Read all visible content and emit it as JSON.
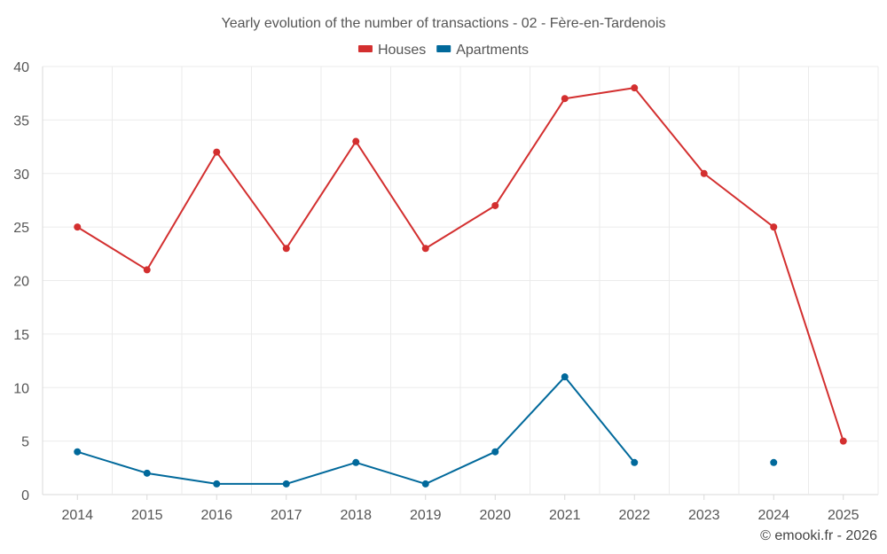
{
  "chart_data": {
    "type": "line",
    "title": "Yearly evolution of the number of transactions - 02 - Fère-en-Tardenois",
    "categories": [
      "2014",
      "2015",
      "2016",
      "2017",
      "2018",
      "2019",
      "2020",
      "2021",
      "2022",
      "2023",
      "2024",
      "2025"
    ],
    "series": [
      {
        "name": "Houses",
        "color": "#d32f2f",
        "values": [
          25,
          21,
          32,
          23,
          33,
          23,
          27,
          37,
          38,
          30,
          25,
          5
        ]
      },
      {
        "name": "Apartments",
        "color": "#01699b",
        "values": [
          4,
          2,
          1,
          1,
          3,
          1,
          4,
          11,
          3,
          null,
          3,
          null
        ]
      }
    ],
    "ylim": [
      0,
      40
    ],
    "yticks": [
      0,
      5,
      10,
      15,
      20,
      25,
      30,
      35,
      40
    ],
    "grid": true,
    "legend_position": "top-center"
  },
  "credit": "© emooki.fr - 2026"
}
